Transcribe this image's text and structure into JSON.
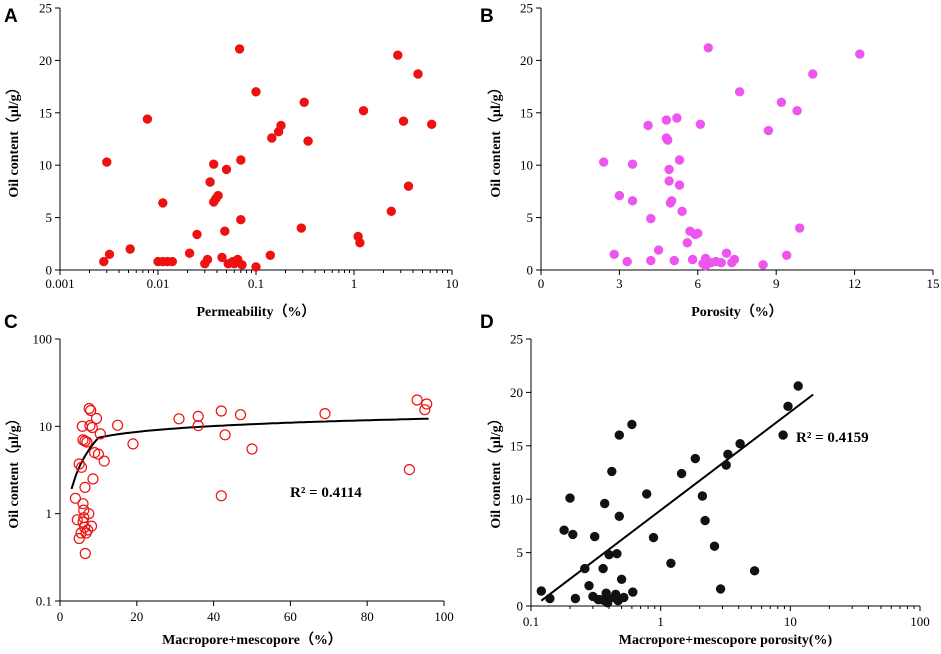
{
  "chart_data": [
    {
      "id": "A",
      "type": "scatter",
      "panel_label": "A",
      "xlabel": "Permeability（%）",
      "ylabel": "Oil content（μl/g）",
      "xscale": "log",
      "xlim": [
        0.001,
        10
      ],
      "ylim": [
        0,
        25
      ],
      "xticks": [
        0.001,
        0.01,
        0.1,
        1,
        10
      ],
      "xtick_labels": [
        "0.001",
        "0.01",
        "0.1",
        "1",
        "10"
      ],
      "yticks": [
        0,
        5,
        10,
        15,
        20,
        25
      ],
      "ytick_labels": [
        "0",
        "5",
        "10",
        "15",
        "20",
        "25"
      ],
      "marker": "filled-circle",
      "color": "#ee1111",
      "points": [
        [
          0.0028,
          0.8
        ],
        [
          0.003,
          10.3
        ],
        [
          0.0032,
          1.5
        ],
        [
          0.0052,
          2.0
        ],
        [
          0.0078,
          14.4
        ],
        [
          0.01,
          0.8
        ],
        [
          0.0112,
          0.8
        ],
        [
          0.0112,
          6.4
        ],
        [
          0.0125,
          0.8
        ],
        [
          0.014,
          0.8
        ],
        [
          0.021,
          1.6
        ],
        [
          0.025,
          3.4
        ],
        [
          0.03,
          0.6
        ],
        [
          0.032,
          1.0
        ],
        [
          0.034,
          8.4
        ],
        [
          0.037,
          10.1
        ],
        [
          0.037,
          6.5
        ],
        [
          0.041,
          7.1
        ],
        [
          0.039,
          6.8
        ],
        [
          0.045,
          1.2
        ],
        [
          0.05,
          9.6
        ],
        [
          0.048,
          3.7
        ],
        [
          0.052,
          0.6
        ],
        [
          0.058,
          0.8
        ],
        [
          0.06,
          0.6
        ],
        [
          0.065,
          1.0
        ],
        [
          0.07,
          4.8
        ],
        [
          0.068,
          21.1
        ],
        [
          0.07,
          10.5
        ],
        [
          0.072,
          0.5
        ],
        [
          0.1,
          17.0
        ],
        [
          0.1,
          0.3
        ],
        [
          0.14,
          1.4
        ],
        [
          0.145,
          12.6
        ],
        [
          0.17,
          13.2
        ],
        [
          0.18,
          13.8
        ],
        [
          0.29,
          4.0
        ],
        [
          0.31,
          16.0
        ],
        [
          0.34,
          12.3
        ],
        [
          1.1,
          3.2
        ],
        [
          1.15,
          2.6
        ],
        [
          1.25,
          15.2
        ],
        [
          2.4,
          5.6
        ],
        [
          2.8,
          20.5
        ],
        [
          3.2,
          14.2
        ],
        [
          3.6,
          8.0
        ],
        [
          4.5,
          18.7
        ],
        [
          6.2,
          13.9
        ]
      ]
    },
    {
      "id": "B",
      "type": "scatter",
      "panel_label": "B",
      "xlabel": "Porosity（%）",
      "ylabel": "Oil content（μl/g）",
      "xlim": [
        0,
        15
      ],
      "ylim": [
        0,
        25
      ],
      "xticks": [
        0,
        3,
        6,
        9,
        12,
        15
      ],
      "xtick_labels": [
        "0",
        "3",
        "6",
        "9",
        "12",
        "15"
      ],
      "yticks": [
        0,
        5,
        10,
        15,
        20,
        25
      ],
      "ytick_labels": [
        "0",
        "5",
        "10",
        "15",
        "20",
        "25"
      ],
      "marker": "filled-circle",
      "color": "#ee55ee",
      "points": [
        [
          2.4,
          10.3
        ],
        [
          2.8,
          1.5
        ],
        [
          3.0,
          7.1
        ],
        [
          3.3,
          0.8
        ],
        [
          3.5,
          10.1
        ],
        [
          3.5,
          6.6
        ],
        [
          4.1,
          13.8
        ],
        [
          4.2,
          4.9
        ],
        [
          4.2,
          0.9
        ],
        [
          4.5,
          1.9
        ],
        [
          4.8,
          14.3
        ],
        [
          4.8,
          12.6
        ],
        [
          4.85,
          12.4
        ],
        [
          4.9,
          9.6
        ],
        [
          4.9,
          8.5
        ],
        [
          4.95,
          6.4
        ],
        [
          5.0,
          6.6
        ],
        [
          5.1,
          0.9
        ],
        [
          5.2,
          14.5
        ],
        [
          5.3,
          10.5
        ],
        [
          5.3,
          8.1
        ],
        [
          5.4,
          5.6
        ],
        [
          5.6,
          2.6
        ],
        [
          5.7,
          3.7
        ],
        [
          5.8,
          1.0
        ],
        [
          5.9,
          3.4
        ],
        [
          6.0,
          3.5
        ],
        [
          6.1,
          13.9
        ],
        [
          6.2,
          0.6
        ],
        [
          6.3,
          0.4
        ],
        [
          6.3,
          1.1
        ],
        [
          6.4,
          21.2
        ],
        [
          6.5,
          0.7
        ],
        [
          6.7,
          0.8
        ],
        [
          6.9,
          0.7
        ],
        [
          7.1,
          1.6
        ],
        [
          7.3,
          0.7
        ],
        [
          7.4,
          1.0
        ],
        [
          7.6,
          17.0
        ],
        [
          8.5,
          0.5
        ],
        [
          8.7,
          13.3
        ],
        [
          9.2,
          16.0
        ],
        [
          9.4,
          1.4
        ],
        [
          9.8,
          15.2
        ],
        [
          9.9,
          4.0
        ],
        [
          10.4,
          18.7
        ],
        [
          12.2,
          20.6
        ]
      ]
    },
    {
      "id": "C",
      "type": "scatter",
      "panel_label": "C",
      "xlabel": "Macropore+mescopore（%）",
      "ylabel": "Oil content（μl/g）",
      "yscale": "log",
      "xlim": [
        0,
        100
      ],
      "ylim": [
        0.1,
        100
      ],
      "xticks": [
        0,
        20,
        40,
        60,
        80,
        100
      ],
      "xtick_labels": [
        "0",
        "20",
        "40",
        "60",
        "80",
        "100"
      ],
      "yticks": [
        0.1,
        1,
        10,
        100
      ],
      "ytick_labels": [
        "0.1",
        "1",
        "10",
        "100"
      ],
      "marker": "open-circle",
      "color": "#ee1111",
      "annotation": "R² = 0.4114",
      "trendline": {
        "type": "log",
        "a": 4.45,
        "b": 0.2214,
        "x_range": [
          3,
          96
        ]
      },
      "points": [
        [
          4.0,
          1.5
        ],
        [
          4.5,
          0.85
        ],
        [
          5.0,
          0.52
        ],
        [
          5.0,
          3.7
        ],
        [
          5.5,
          0.6
        ],
        [
          5.6,
          3.4
        ],
        [
          5.8,
          10.0
        ],
        [
          6.0,
          0.8
        ],
        [
          6.0,
          1.3
        ],
        [
          6.0,
          7.0
        ],
        [
          6.2,
          1.1
        ],
        [
          6.2,
          0.9
        ],
        [
          6.4,
          0.7
        ],
        [
          6.5,
          2.0
        ],
        [
          6.5,
          6.8
        ],
        [
          6.6,
          0.35
        ],
        [
          6.8,
          0.6
        ],
        [
          7.0,
          6.6
        ],
        [
          7.2,
          0.65
        ],
        [
          7.5,
          1.0
        ],
        [
          7.6,
          16.0
        ],
        [
          7.8,
          10.2
        ],
        [
          8.0,
          15.2
        ],
        [
          8.2,
          0.72
        ],
        [
          8.4,
          9.7
        ],
        [
          8.6,
          2.5
        ],
        [
          9.0,
          5.0
        ],
        [
          9.5,
          12.3
        ],
        [
          10.0,
          4.8
        ],
        [
          10.5,
          8.2
        ],
        [
          11.5,
          4.0
        ],
        [
          15.0,
          10.3
        ],
        [
          19.0,
          6.3
        ],
        [
          31.0,
          12.2
        ],
        [
          36.0,
          13.0
        ],
        [
          36.0,
          10.2
        ],
        [
          42.0,
          1.6
        ],
        [
          42.0,
          15.0
        ],
        [
          43.0,
          8.0
        ],
        [
          47.0,
          13.6
        ],
        [
          50.0,
          5.5
        ],
        [
          69.0,
          14.0
        ],
        [
          91.0,
          3.2
        ],
        [
          93.0,
          20.0
        ],
        [
          95.0,
          15.5
        ],
        [
          95.5,
          18.0
        ]
      ]
    },
    {
      "id": "D",
      "type": "scatter",
      "panel_label": "D",
      "xlabel": "Macropore+mescopore porosity(%)",
      "ylabel": "Oil content（μl/g）",
      "xscale": "log",
      "xlim": [
        0.1,
        100
      ],
      "ylim": [
        0,
        25
      ],
      "xticks": [
        0.1,
        1,
        10,
        100
      ],
      "xtick_labels": [
        "0.1",
        "1",
        "10",
        "100"
      ],
      "yticks": [
        0,
        5,
        10,
        15,
        20,
        25
      ],
      "ytick_labels": [
        "0",
        "5",
        "10",
        "15",
        "20",
        "25"
      ],
      "marker": "filled-circle",
      "color": "#111111",
      "annotation": "R² = 0.4159",
      "trendline": {
        "type": "log10-linear",
        "x_range": [
          0.12,
          15
        ],
        "y_at_start": 0.5,
        "y_at_end": 19.8
      },
      "points": [
        [
          0.12,
          1.4
        ],
        [
          0.14,
          0.7
        ],
        [
          0.18,
          7.1
        ],
        [
          0.2,
          10.1
        ],
        [
          0.21,
          6.7
        ],
        [
          0.22,
          0.7
        ],
        [
          0.26,
          3.5
        ],
        [
          0.28,
          1.9
        ],
        [
          0.3,
          0.9
        ],
        [
          0.31,
          6.5
        ],
        [
          0.33,
          0.6
        ],
        [
          0.34,
          0.6
        ],
        [
          0.36,
          3.5
        ],
        [
          0.37,
          9.6
        ],
        [
          0.37,
          0.5
        ],
        [
          0.38,
          0.7
        ],
        [
          0.38,
          1.2
        ],
        [
          0.39,
          0.3
        ],
        [
          0.4,
          4.8
        ],
        [
          0.42,
          12.6
        ],
        [
          0.44,
          0.8
        ],
        [
          0.45,
          1.1
        ],
        [
          0.46,
          4.9
        ],
        [
          0.47,
          0.5
        ],
        [
          0.48,
          8.4
        ],
        [
          0.48,
          16.0
        ],
        [
          0.5,
          2.5
        ],
        [
          0.52,
          0.8
        ],
        [
          0.6,
          17.0
        ],
        [
          0.61,
          1.3
        ],
        [
          0.78,
          10.5
        ],
        [
          0.88,
          6.4
        ],
        [
          1.2,
          4.0
        ],
        [
          1.45,
          12.4
        ],
        [
          1.85,
          13.8
        ],
        [
          2.1,
          10.3
        ],
        [
          2.2,
          8.0
        ],
        [
          2.6,
          5.6
        ],
        [
          2.9,
          1.6
        ],
        [
          3.2,
          13.2
        ],
        [
          3.3,
          14.2
        ],
        [
          4.1,
          15.2
        ],
        [
          5.3,
          3.3
        ],
        [
          8.8,
          16.0
        ],
        [
          9.6,
          18.7
        ],
        [
          11.5,
          20.6
        ]
      ]
    }
  ]
}
